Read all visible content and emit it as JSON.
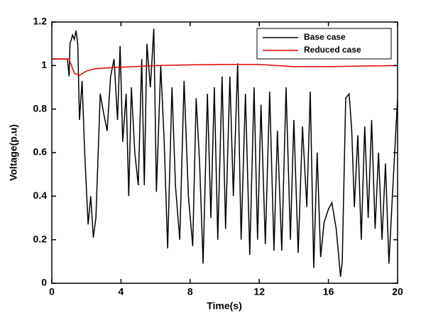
{
  "chart_data": {
    "type": "line",
    "x_label": "Time(s)",
    "y_label": "Voltage(p.u)",
    "xlim": [
      0,
      20
    ],
    "ylim": [
      0,
      1.2
    ],
    "xticks": [
      0,
      4,
      8,
      12,
      16,
      20
    ],
    "yticks": [
      0,
      0.2,
      0.4,
      0.6,
      0.8,
      1,
      1.2
    ],
    "legend": "upper right",
    "series": [
      {
        "name": "Base case",
        "color": "#000000",
        "x": [
          0,
          0.9,
          1.0,
          1.05,
          1.2,
          1.3,
          1.4,
          1.5,
          1.6,
          1.75,
          1.9,
          2.1,
          2.25,
          2.4,
          2.55,
          2.8,
          3.0,
          3.2,
          3.4,
          3.6,
          3.8,
          3.95,
          4.1,
          4.3,
          4.45,
          4.6,
          4.8,
          5.0,
          5.2,
          5.35,
          5.5,
          5.7,
          5.9,
          6.05,
          6.3,
          6.5,
          6.7,
          6.95,
          7.15,
          7.4,
          7.65,
          7.9,
          8.15,
          8.35,
          8.55,
          8.75,
          9.0,
          9.2,
          9.4,
          9.6,
          9.85,
          10.05,
          10.3,
          10.5,
          10.75,
          10.95,
          11.2,
          11.45,
          11.7,
          11.9,
          12.1,
          12.35,
          12.6,
          12.85,
          13.05,
          13.3,
          13.55,
          13.8,
          14.0,
          14.25,
          14.5,
          14.75,
          14.95,
          15.15,
          15.35,
          15.55,
          15.75,
          16.0,
          16.2,
          16.45,
          16.7,
          16.8,
          17.0,
          17.2,
          17.35,
          17.5,
          17.7,
          17.9,
          18.1,
          18.3,
          18.5,
          18.7,
          18.9,
          19.1,
          19.3,
          19.5,
          19.7,
          20
        ],
        "values": [
          1.03,
          1.03,
          0.95,
          1.1,
          1.14,
          1.12,
          1.16,
          1.1,
          0.75,
          0.93,
          0.6,
          0.27,
          0.4,
          0.21,
          0.3,
          0.87,
          0.78,
          0.7,
          0.95,
          1.03,
          0.75,
          1.09,
          0.65,
          0.87,
          0.4,
          0.9,
          0.6,
          0.45,
          1.03,
          0.45,
          1.1,
          0.9,
          1.17,
          0.42,
          1.0,
          0.65,
          0.16,
          0.9,
          0.45,
          0.2,
          0.93,
          0.4,
          0.17,
          0.85,
          0.55,
          0.09,
          0.87,
          0.3,
          0.9,
          0.2,
          0.95,
          0.25,
          0.95,
          0.4,
          1.01,
          0.2,
          0.87,
          0.13,
          0.9,
          0.2,
          0.82,
          0.18,
          0.88,
          0.15,
          0.7,
          0.15,
          0.9,
          0.2,
          0.75,
          0.14,
          0.72,
          0.35,
          0.88,
          0.07,
          0.6,
          0.12,
          0.28,
          0.34,
          0.37,
          0.25,
          0.03,
          0.1,
          0.85,
          0.87,
          0.7,
          0.35,
          0.68,
          0.2,
          0.72,
          0.3,
          0.75,
          0.25,
          0.6,
          0.2,
          0.55,
          0.09,
          0.4,
          0.85
        ]
      },
      {
        "name": "Reduced case",
        "color": "#e00000",
        "x": [
          0,
          1.0,
          1.3,
          1.6,
          2.0,
          2.5,
          3.0,
          4.0,
          6.0,
          8.0,
          10.0,
          12.0,
          14.0,
          16.0,
          18.0,
          20.0
        ],
        "values": [
          1.03,
          1.03,
          0.965,
          0.955,
          0.975,
          0.985,
          0.988,
          0.992,
          1.0,
          1.003,
          1.005,
          1.005,
          0.995,
          0.995,
          0.998,
          1.0
        ]
      }
    ]
  }
}
